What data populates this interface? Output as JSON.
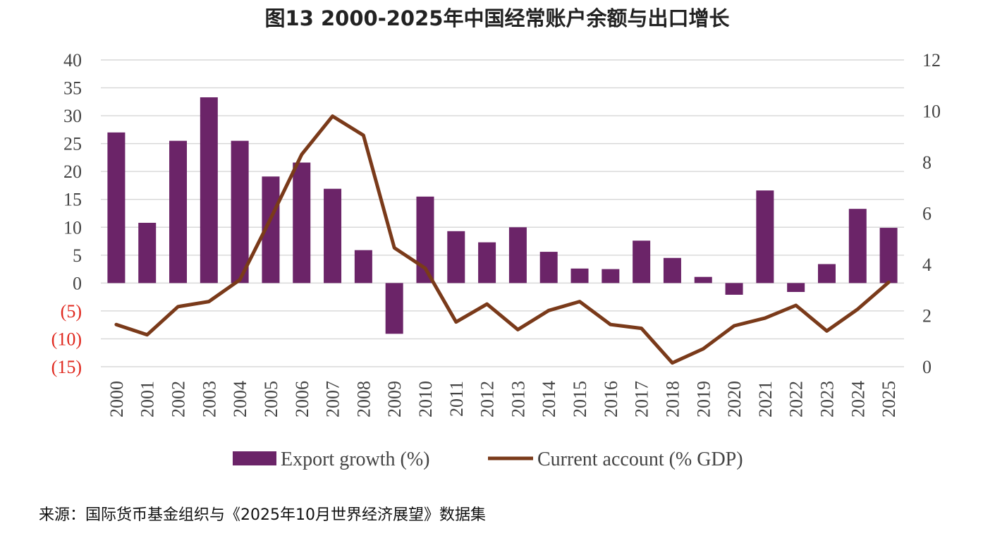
{
  "chart_data": {
    "type": "bar+line",
    "title": "图13 2000-2025年中国经常账户余额与出口增长",
    "categories": [
      "2000",
      "2001",
      "2002",
      "2003",
      "2004",
      "2005",
      "2006",
      "2007",
      "2008",
      "2009",
      "2010",
      "2011",
      "2012",
      "2013",
      "2014",
      "2015",
      "2016",
      "2017",
      "2018",
      "2019",
      "2020",
      "2021",
      "2022",
      "2023",
      "2024",
      "2025"
    ],
    "series": [
      {
        "name": "Export growth (%)",
        "type": "bar",
        "axis": "left",
        "color": "#6b2468",
        "values": [
          27.0,
          10.8,
          25.5,
          33.3,
          25.5,
          19.1,
          21.6,
          16.9,
          5.9,
          -9.1,
          15.5,
          9.3,
          7.3,
          10.0,
          5.6,
          2.6,
          2.5,
          7.6,
          4.5,
          1.1,
          -2.1,
          16.6,
          -1.6,
          3.4,
          13.3,
          9.9
        ]
      },
      {
        "name": "Current account (% GDP)",
        "type": "line",
        "axis": "right",
        "color": "#7a3a1a",
        "values": [
          1.65,
          1.25,
          2.35,
          2.55,
          3.4,
          5.8,
          8.3,
          9.8,
          9.05,
          4.65,
          3.85,
          1.75,
          2.45,
          1.45,
          2.2,
          2.55,
          1.65,
          1.5,
          0.15,
          0.7,
          1.6,
          1.9,
          2.4,
          1.4,
          2.25,
          3.3
        ]
      }
    ],
    "y_left": {
      "ylim": [
        -15,
        40
      ],
      "ticks": [
        40,
        35,
        30,
        25,
        20,
        15,
        10,
        5,
        0,
        -5,
        -10,
        -15
      ],
      "tick_labels": [
        "40",
        "35",
        "30",
        "25",
        "20",
        "15",
        "10",
        "5",
        "0",
        "(5)",
        "(10)",
        "(15)"
      ],
      "negative_label_color": "#e0281e"
    },
    "y_right": {
      "ylim": [
        0,
        12
      ],
      "ticks": [
        12,
        10,
        8,
        6,
        4,
        2,
        0
      ],
      "tick_labels": [
        "12",
        "10",
        "8",
        "6",
        "4",
        "2",
        "0"
      ]
    },
    "grid": true,
    "legend_position": "bottom",
    "source": "来源：国际货币基金组织与《2025年10月世界经济展望》数据集"
  }
}
